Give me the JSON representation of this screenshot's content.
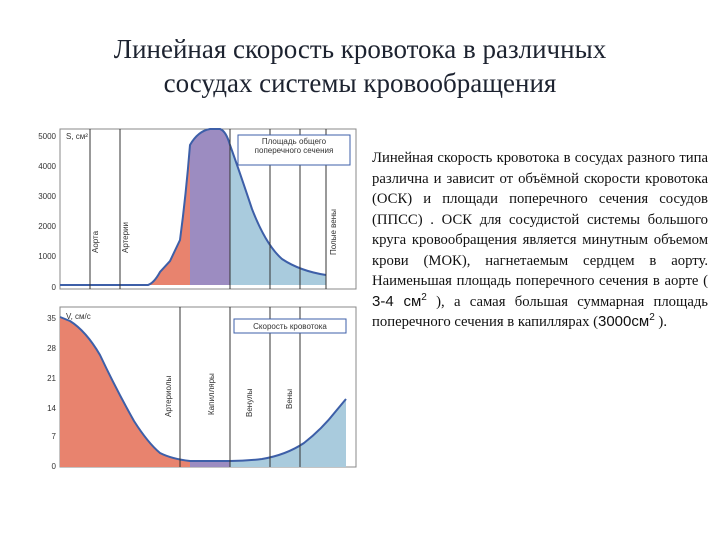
{
  "slide": {
    "title_line1": "Линейная скорость кровотока в различных",
    "title_line2": "сосудах системы кровообращения"
  },
  "figure": {
    "top_chart": {
      "axis_title": "S, см²",
      "y_ticks": [
        "5000",
        "4000",
        "3000",
        "2000",
        "1000",
        "0"
      ],
      "legend": "Площадь общего поперечного сечения",
      "vessel_labels": [
        "Аорта",
        "Артерии",
        "Полые вены"
      ]
    },
    "bottom_chart": {
      "axis_title": "V, см/с",
      "y_ticks": [
        "35",
        "28",
        "21",
        "14",
        "7",
        "0"
      ],
      "legend": "Скорость кровотока",
      "vessel_labels": [
        "Артериолы",
        "Капилляры",
        "Венулы",
        "Вены"
      ]
    },
    "colors": {
      "arterial": "#e8836e",
      "capillary": "#9c8cc1",
      "venous": "#a9cbdd",
      "curve": "#3d5fa8"
    }
  },
  "text": {
    "p1": "Линейная скорость кровотока в сосудах разного типа различна и зависит от объёмной скорости кровотока (ОСК) и площади поперечного сечения сосудов (ППСС) . ОСК для сосудистой системы большого круга кровообращения является минутным объемом крови (МОК), нагнетаемым сердцем в аорту. Наименьшая площадь поперечного сечения в аорте (",
    "aorta_value": "3-4",
    "p2": "), а самая большая суммарная площадь поперечного сечения в капиллярах (",
    "capillary_value": "3000",
    "unit": "см",
    "unit_exp": "2",
    "p3": ")."
  }
}
